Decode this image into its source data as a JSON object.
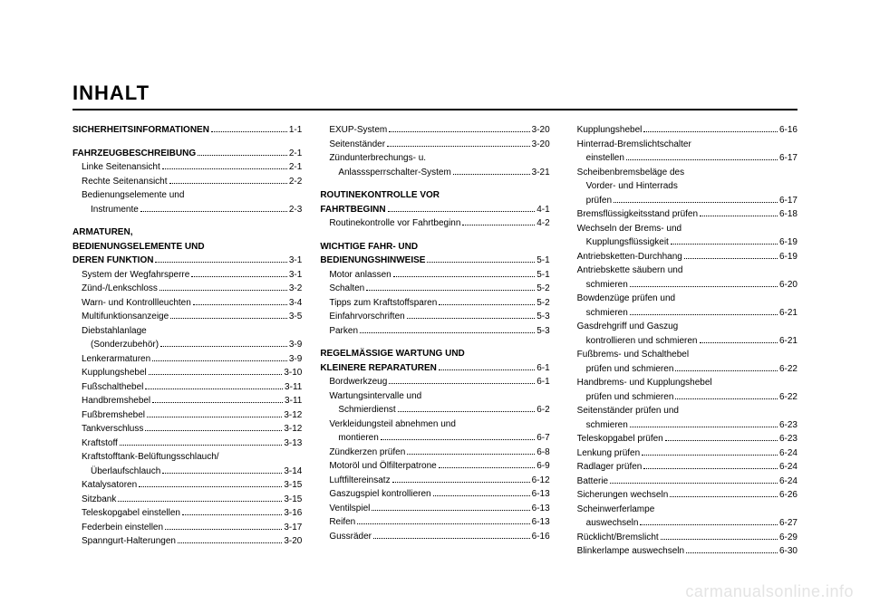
{
  "title": "INHALT",
  "watermark": "carmanualsonline.info",
  "columns": [
    [
      {
        "type": "section-entry",
        "indent": 0,
        "label": "SICHERHEITSINFORMATIONEN",
        "page": "1-1",
        "bold": true
      },
      {
        "type": "spacer"
      },
      {
        "type": "section-entry",
        "indent": 0,
        "label": "FAHRZEUGBESCHREIBUNG",
        "page": "2-1",
        "bold": true
      },
      {
        "type": "entry",
        "indent": 1,
        "label": "Linke Seitenansicht",
        "page": "2-1"
      },
      {
        "type": "entry",
        "indent": 1,
        "label": "Rechte Seitenansicht",
        "page": "2-2"
      },
      {
        "type": "text",
        "indent": 1,
        "label": "Bedienungselemente und"
      },
      {
        "type": "entry",
        "indent": 2,
        "label": "Instrumente",
        "page": "2-3"
      },
      {
        "type": "spacer"
      },
      {
        "type": "text",
        "indent": 0,
        "label": "ARMATUREN,",
        "bold": true
      },
      {
        "type": "text",
        "indent": 0,
        "label": "BEDIENUNGSELEMENTE UND",
        "bold": true
      },
      {
        "type": "section-entry",
        "indent": 0,
        "label": "DEREN FUNKTION",
        "page": "3-1",
        "bold": true
      },
      {
        "type": "entry",
        "indent": 1,
        "label": "System der Wegfahrsperre",
        "page": "3-1"
      },
      {
        "type": "entry",
        "indent": 1,
        "label": "Zünd-/Lenkschloss",
        "page": "3-2"
      },
      {
        "type": "entry",
        "indent": 1,
        "label": "Warn- und Kontrollleuchten",
        "page": "3-4"
      },
      {
        "type": "entry",
        "indent": 1,
        "label": "Multifunktionsanzeige",
        "page": "3-5"
      },
      {
        "type": "text",
        "indent": 1,
        "label": "Diebstahlanlage"
      },
      {
        "type": "entry",
        "indent": 2,
        "label": "(Sonderzubehör)",
        "page": "3-9"
      },
      {
        "type": "entry",
        "indent": 1,
        "label": "Lenkerarmaturen",
        "page": "3-9"
      },
      {
        "type": "entry",
        "indent": 1,
        "label": "Kupplungshebel",
        "page": "3-10"
      },
      {
        "type": "entry",
        "indent": 1,
        "label": "Fußschalthebel",
        "page": "3-11"
      },
      {
        "type": "entry",
        "indent": 1,
        "label": "Handbremshebel",
        "page": "3-11"
      },
      {
        "type": "entry",
        "indent": 1,
        "label": "Fußbremshebel",
        "page": "3-12"
      },
      {
        "type": "entry",
        "indent": 1,
        "label": "Tankverschluss",
        "page": "3-12"
      },
      {
        "type": "entry",
        "indent": 1,
        "label": "Kraftstoff",
        "page": "3-13"
      },
      {
        "type": "text",
        "indent": 1,
        "label": "Kraftstofftank-Belüftungsschlauch/"
      },
      {
        "type": "entry",
        "indent": 2,
        "label": "Überlaufschlauch",
        "page": "3-14"
      },
      {
        "type": "entry",
        "indent": 1,
        "label": "Katalysatoren",
        "page": "3-15"
      },
      {
        "type": "entry",
        "indent": 1,
        "label": "Sitzbank",
        "page": "3-15"
      },
      {
        "type": "entry",
        "indent": 1,
        "label": "Teleskopgabel einstellen",
        "page": "3-16"
      },
      {
        "type": "entry",
        "indent": 1,
        "label": "Federbein einstellen",
        "page": "3-17"
      },
      {
        "type": "entry",
        "indent": 1,
        "label": "Spanngurt-Halterungen",
        "page": "3-20"
      }
    ],
    [
      {
        "type": "entry",
        "indent": 1,
        "label": "EXUP-System",
        "page": "3-20"
      },
      {
        "type": "entry",
        "indent": 1,
        "label": "Seitenständer",
        "page": "3-20"
      },
      {
        "type": "text",
        "indent": 1,
        "label": "Zündunterbrechungs- u."
      },
      {
        "type": "entry",
        "indent": 2,
        "label": "Anlasssperrschalter-System",
        "page": "3-21"
      },
      {
        "type": "spacer"
      },
      {
        "type": "text",
        "indent": 0,
        "label": "ROUTINEKONTROLLE VOR",
        "bold": true
      },
      {
        "type": "section-entry",
        "indent": 0,
        "label": "FAHRTBEGINN",
        "page": "4-1",
        "bold": true
      },
      {
        "type": "entry",
        "indent": 1,
        "label": "Routinekontrolle vor Fahrtbeginn",
        "page": "4-2"
      },
      {
        "type": "spacer"
      },
      {
        "type": "text",
        "indent": 0,
        "label": "WICHTIGE FAHR- UND",
        "bold": true
      },
      {
        "type": "section-entry",
        "indent": 0,
        "label": "BEDIENUNGSHINWEISE",
        "page": "5-1",
        "bold": true
      },
      {
        "type": "entry",
        "indent": 1,
        "label": "Motor anlassen",
        "page": "5-1"
      },
      {
        "type": "entry",
        "indent": 1,
        "label": "Schalten",
        "page": "5-2"
      },
      {
        "type": "entry",
        "indent": 1,
        "label": "Tipps zum Kraftstoffsparen",
        "page": "5-2"
      },
      {
        "type": "entry",
        "indent": 1,
        "label": "Einfahrvorschriften",
        "page": "5-3"
      },
      {
        "type": "entry",
        "indent": 1,
        "label": "Parken",
        "page": "5-3"
      },
      {
        "type": "spacer"
      },
      {
        "type": "text",
        "indent": 0,
        "label": "REGELMÄSSIGE WARTUNG UND",
        "bold": true
      },
      {
        "type": "section-entry",
        "indent": 0,
        "label": "KLEINERE REPARATUREN",
        "page": "6-1",
        "bold": true
      },
      {
        "type": "entry",
        "indent": 1,
        "label": "Bordwerkzeug",
        "page": "6-1"
      },
      {
        "type": "text",
        "indent": 1,
        "label": "Wartungsintervalle und"
      },
      {
        "type": "entry",
        "indent": 2,
        "label": "Schmierdienst",
        "page": "6-2"
      },
      {
        "type": "text",
        "indent": 1,
        "label": "Verkleidungsteil abnehmen und"
      },
      {
        "type": "entry",
        "indent": 2,
        "label": "montieren",
        "page": "6-7"
      },
      {
        "type": "entry",
        "indent": 1,
        "label": "Zündkerzen prüfen",
        "page": "6-8"
      },
      {
        "type": "entry",
        "indent": 1,
        "label": "Motoröl und Ölfilterpatrone",
        "page": "6-9"
      },
      {
        "type": "entry",
        "indent": 1,
        "label": "Luftfiltereinsatz",
        "page": "6-12"
      },
      {
        "type": "entry",
        "indent": 1,
        "label": "Gaszugspiel kontrollieren",
        "page": "6-13"
      },
      {
        "type": "entry",
        "indent": 1,
        "label": "Ventilspiel",
        "page": "6-13"
      },
      {
        "type": "entry",
        "indent": 1,
        "label": "Reifen",
        "page": "6-13"
      },
      {
        "type": "entry",
        "indent": 1,
        "label": "Gussräder",
        "page": "6-16"
      }
    ],
    [
      {
        "type": "entry",
        "indent": 1,
        "label": "Kupplungshebel",
        "page": "6-16"
      },
      {
        "type": "text",
        "indent": 1,
        "label": "Hinterrad-Bremslichtschalter"
      },
      {
        "type": "entry",
        "indent": 2,
        "label": "einstellen",
        "page": "6-17"
      },
      {
        "type": "text",
        "indent": 1,
        "label": "Scheibenbremsbeläge des"
      },
      {
        "type": "text",
        "indent": 2,
        "label": "Vorder- und Hinterrads"
      },
      {
        "type": "entry",
        "indent": 2,
        "label": "prüfen",
        "page": "6-17"
      },
      {
        "type": "entry",
        "indent": 1,
        "label": "Bremsflüssigkeitsstand prüfen",
        "page": "6-18"
      },
      {
        "type": "text",
        "indent": 1,
        "label": "Wechseln der Brems- und"
      },
      {
        "type": "entry",
        "indent": 2,
        "label": "Kupplungsflüssigkeit",
        "page": "6-19"
      },
      {
        "type": "entry",
        "indent": 1,
        "label": "Antriebsketten-Durchhang",
        "page": "6-19"
      },
      {
        "type": "text",
        "indent": 1,
        "label": "Antriebskette säubern und"
      },
      {
        "type": "entry",
        "indent": 2,
        "label": "schmieren",
        "page": "6-20"
      },
      {
        "type": "text",
        "indent": 1,
        "label": "Bowdenzüge prüfen und"
      },
      {
        "type": "entry",
        "indent": 2,
        "label": "schmieren",
        "page": "6-21"
      },
      {
        "type": "text",
        "indent": 1,
        "label": "Gasdrehgriff und Gaszug"
      },
      {
        "type": "entry",
        "indent": 2,
        "label": "kontrollieren und schmieren",
        "page": "6-21"
      },
      {
        "type": "text",
        "indent": 1,
        "label": "Fußbrems- und Schalthebel"
      },
      {
        "type": "entry",
        "indent": 2,
        "label": "prüfen und schmieren",
        "page": "6-22"
      },
      {
        "type": "text",
        "indent": 1,
        "label": "Handbrems- und Kupplungshebel"
      },
      {
        "type": "entry",
        "indent": 2,
        "label": "prüfen und schmieren",
        "page": "6-22"
      },
      {
        "type": "text",
        "indent": 1,
        "label": "Seitenständer prüfen und"
      },
      {
        "type": "entry",
        "indent": 2,
        "label": "schmieren",
        "page": "6-23"
      },
      {
        "type": "entry",
        "indent": 1,
        "label": "Teleskopgabel prüfen",
        "page": "6-23"
      },
      {
        "type": "entry",
        "indent": 1,
        "label": "Lenkung prüfen",
        "page": "6-24"
      },
      {
        "type": "entry",
        "indent": 1,
        "label": "Radlager prüfen",
        "page": "6-24"
      },
      {
        "type": "entry",
        "indent": 1,
        "label": "Batterie",
        "page": "6-24"
      },
      {
        "type": "entry",
        "indent": 1,
        "label": "Sicherungen wechseln",
        "page": "6-26"
      },
      {
        "type": "text",
        "indent": 1,
        "label": "Scheinwerferlampe"
      },
      {
        "type": "entry",
        "indent": 2,
        "label": "auswechseln",
        "page": "6-27"
      },
      {
        "type": "entry",
        "indent": 1,
        "label": "Rücklicht/Bremslicht",
        "page": "6-29"
      },
      {
        "type": "entry",
        "indent": 1,
        "label": "Blinkerlampe auswechseln",
        "page": "6-30"
      }
    ]
  ]
}
